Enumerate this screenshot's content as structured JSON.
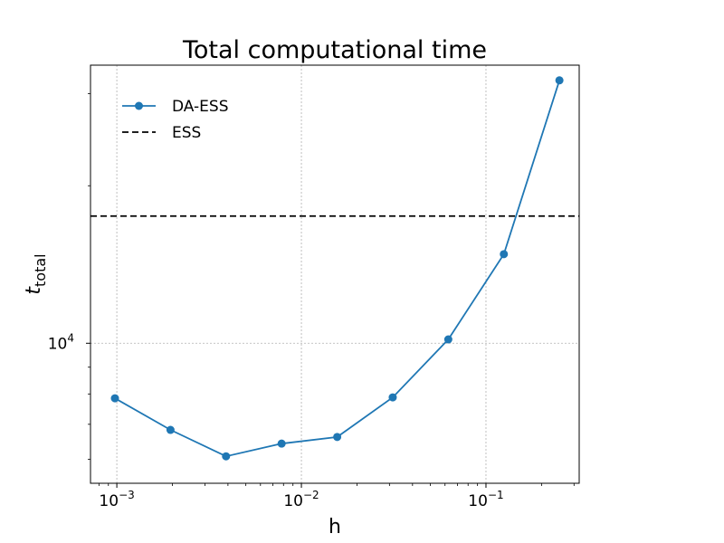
{
  "chart_data": {
    "type": "line",
    "title": "Total computational time",
    "xlabel": "h",
    "ylabel": {
      "base": "t",
      "subscript": "total"
    },
    "xscale": "log",
    "yscale": "log",
    "grid": true,
    "legend_position": "top-left",
    "xlim": [
      0.00072,
      0.32
    ],
    "ylim": [
      5400,
      34000
    ],
    "x_ticks": [
      {
        "value": 0.001,
        "base": "10",
        "exp": "−3"
      },
      {
        "value": 0.01,
        "base": "10",
        "exp": "−2"
      },
      {
        "value": 0.1,
        "base": "10",
        "exp": "−1"
      }
    ],
    "y_ticks": [
      {
        "value": 10000,
        "base": "10",
        "exp": "4"
      }
    ],
    "y_minor_ticks": [
      6000,
      7000,
      8000,
      9000,
      20000,
      30000
    ],
    "series": [
      {
        "name": "DA-ESS",
        "color": "#1f77b4",
        "marker": "circle",
        "linestyle": "solid",
        "x": [
          0.0009766,
          0.001953,
          0.003906,
          0.007813,
          0.01563,
          0.03125,
          0.0625,
          0.125,
          0.25
        ],
        "y": [
          7850,
          6830,
          6080,
          6430,
          6620,
          7880,
          10170,
          14800,
          31800
        ]
      },
      {
        "name": "ESS",
        "color": "#000000",
        "linestyle": "dashed",
        "type": "hline",
        "y": 17500
      }
    ]
  }
}
